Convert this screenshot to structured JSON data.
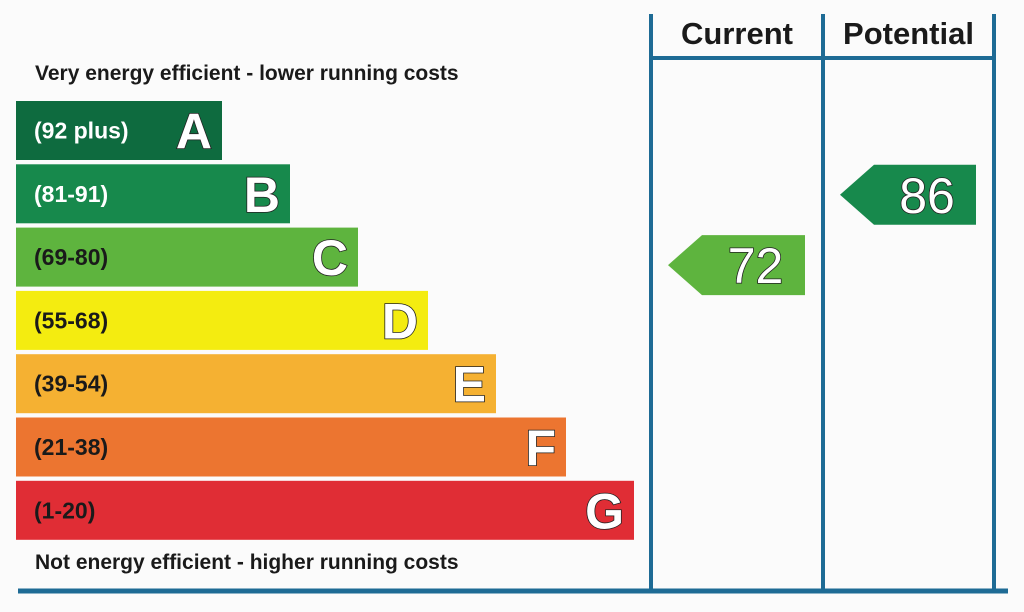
{
  "chart_data": {
    "type": "table",
    "top_caption": "Very energy efficient - lower running costs",
    "bottom_caption": "Not energy efficient - higher running costs",
    "bands": [
      {
        "letter": "A",
        "range": "(92 plus)",
        "min": 92,
        "max": 100,
        "color": "#0e6b3f",
        "label_color": "#ffffff"
      },
      {
        "letter": "B",
        "range": "(81-91)",
        "min": 81,
        "max": 91,
        "color": "#17894c",
        "label_color": "#ffffff"
      },
      {
        "letter": "C",
        "range": "(69-80)",
        "min": 69,
        "max": 80,
        "color": "#5eb43e",
        "label_color": "#1a1a1a"
      },
      {
        "letter": "D",
        "range": "(55-68)",
        "min": 55,
        "max": 68,
        "color": "#f4ec10",
        "label_color": "#1a1a1a"
      },
      {
        "letter": "E",
        "range": "(39-54)",
        "min": 39,
        "max": 54,
        "color": "#f5b132",
        "label_color": "#1a1a1a"
      },
      {
        "letter": "F",
        "range": "(21-38)",
        "min": 21,
        "max": 38,
        "color": "#ec7530",
        "label_color": "#1a1a1a"
      },
      {
        "letter": "G",
        "range": "(1-20)",
        "min": 1,
        "max": 20,
        "color": "#e02d35",
        "label_color": "#1a1a1a"
      }
    ],
    "columns": [
      {
        "header": "Current",
        "value": 72,
        "band": "C",
        "color": "#5eb43e"
      },
      {
        "header": "Potential",
        "value": 86,
        "band": "B",
        "color": "#17894c"
      }
    ],
    "frame_color": "#1e6b95"
  }
}
